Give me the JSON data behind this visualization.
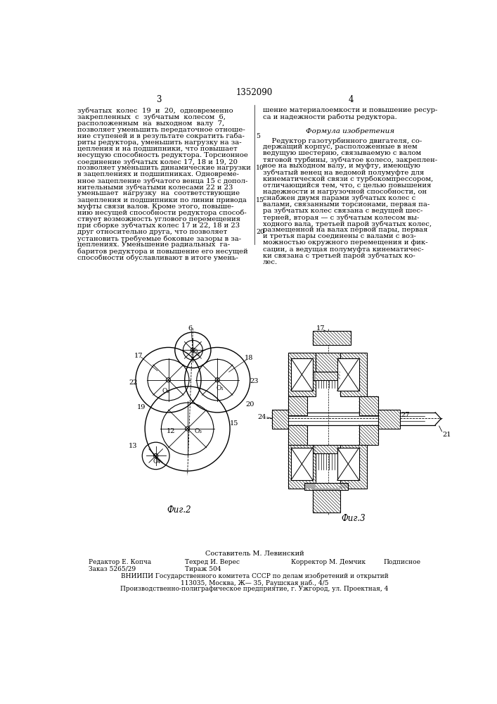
{
  "patent_number": "1352090",
  "page_left": "3",
  "page_right": "4",
  "background_color": "#ffffff",
  "text_color": "#000000",
  "left_column_text": [
    "зубчатых  колес  19  и  20,  одновременно",
    "закрепленных  с  зубчатым  колесом  6,",
    "расположенным  на  выходном  валу  7,",
    "позволяет уменьшить передаточное отноше-",
    "ние ступеней и в результате сократить габа-",
    "риты редуктора, уменьшить нагрузку на за-",
    "цепления и на подшипники, что повышает",
    "несущую способность редуктора. Торсионное",
    "соединение зубчатых колес 17, 18 и 19, 20",
    "позволяет уменьшить динамические нагрузки",
    "в зацеплениях и подшипниках. Одновреме-",
    "нное зацепление зубчатого венца 15 с допол-",
    "нительными зубчатыми колесами 22 и 23",
    "уменьшает  нагрузку  на  соответствующие",
    "зацепления и подшипники по линии привода",
    "муфты связи валов. Кроме этого, повыше-",
    "нию несущей способности редуктора способ-",
    "ствует возможность углового перемещения",
    "при сборке зубчатых колес 17 и 22, 18 и 23",
    "друг относительно друга, что позволяет",
    "установить требуемые боковые зазоры в за-",
    "цеплениях. Уменьшение радиальных  га-",
    "баритов редуктора и повышение его несущей",
    "способности обуславливают в итоге умень-"
  ],
  "right_col_top": [
    "шение материалоемкости и повышение ресур-",
    "са и надежности работы редуктора."
  ],
  "formula_title": "Формула изобретения",
  "right_column_formula": [
    "    Редуктор газотурбинного двигателя, со-",
    "держащий корпус, расположенные в нем",
    "ведущую шестерню, связываемую с валом",
    "тяговой турбины, зубчатое колесо, закреплен-",
    "ное на выходном валу, и муфту, имеющую",
    "зубчатый венец на ведомой полумуфте для",
    "кинематической связи с турбокомпрессором,",
    "отличающийся тем, что, с целью повышения",
    "надежности и нагрузочной способности, он",
    "снабжен двумя парами зубчатых колес с",
    "валами, связанными торсионами, первая па-",
    "ра зубчатых колес связана с ведущей шес-",
    "терней, вторая — с зубчатым колесом вы-",
    "ходного вала, третьей парой зубчатых колес,",
    "размещенной на валах первой пары, первая",
    "и третья пары соединены с валами с воз-",
    "можностью окружного перемещения и фик-",
    "сации, а ведущая полумуфта кинематичес-",
    "ки связана с третьей парой зубчатых ко-",
    "лес."
  ],
  "fig2_label": "Фиг.2",
  "fig3_label": "Фиг.3",
  "composer": "Составитель М. Левинский",
  "editor": "Редактор Е. Копча",
  "techred": "Техред И. Верес",
  "corrector": "Корректор М. Демчик",
  "order": "Заказ 5265/29",
  "circulation": "Тираж 504",
  "signed": "Подписное",
  "vniipi": "ВНИИПИ Государственного комитета СССР по делам изобретений и открытий",
  "address": "113035, Москва, Ж— 35, Раушская наб., 4/5",
  "factory": "Производственно-полиграфическое предприятие, г. Ужгород, ул. Проектная, 4"
}
